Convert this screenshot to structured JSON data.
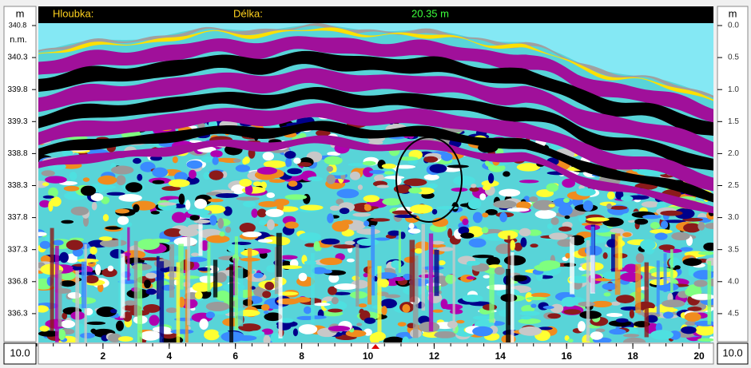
{
  "header": {
    "depth_label": "Hloubka:",
    "length_label": "Délka:",
    "length_value": "20.35 m"
  },
  "left_axis": {
    "unit": "m",
    "datum": "n.m.",
    "ticks": [
      340.8,
      340.3,
      339.8,
      339.3,
      338.8,
      338.3,
      337.8,
      337.3,
      336.8,
      336.3
    ]
  },
  "right_axis": {
    "unit": "m",
    "ticks": [
      {
        "value": 0,
        "label": "0.0"
      },
      0.5,
      {
        "value": 1,
        "label": "1.0"
      },
      1.5,
      {
        "value": 2,
        "label": "2.0"
      },
      2.5,
      {
        "value": 3,
        "label": "3.0"
      },
      3.5,
      {
        "value": 4,
        "label": "4.0"
      },
      4.5
    ]
  },
  "bottom_axis": {
    "ticks": [
      2,
      4,
      6,
      8,
      10,
      12,
      14,
      16,
      18,
      20
    ],
    "left_box": "10.0",
    "right_box": "10.0"
  }
}
